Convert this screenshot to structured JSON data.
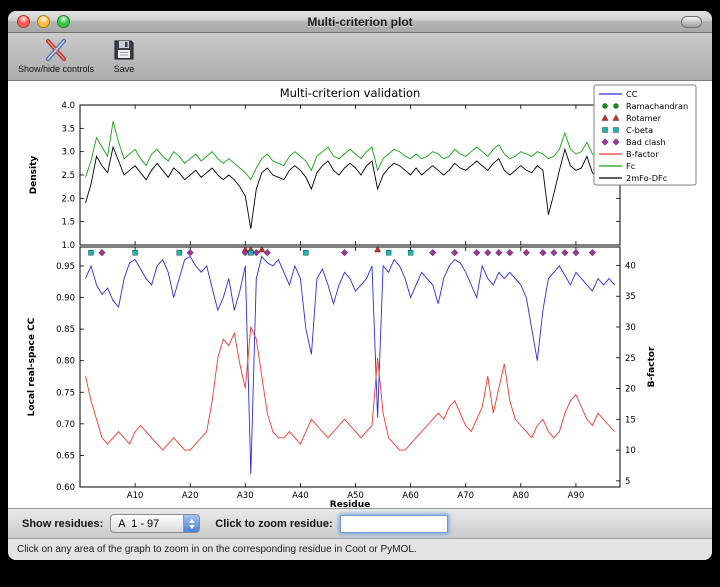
{
  "window": {
    "title": "Multi-criterion plot"
  },
  "toolbar": {
    "buttons": [
      {
        "label": "Show/hide controls"
      },
      {
        "label": "Save"
      }
    ]
  },
  "controls": {
    "show_residues_label": "Show residues:",
    "residue_range_value": "A  1 - 97",
    "zoom_label": "Click to zoom residue:",
    "zoom_input_value": ""
  },
  "status": {
    "text": "Click on any area of the graph to zoom in on the corresponding residue in Coot or PyMOL."
  },
  "chart_data": {
    "type": "line",
    "title": "Multi-criterion validation",
    "xlabel": "Residue",
    "x_range": [
      0,
      98
    ],
    "x_ticks": [
      [
        10,
        "A10"
      ],
      [
        20,
        "A20"
      ],
      [
        30,
        "A30"
      ],
      [
        40,
        "A40"
      ],
      [
        50,
        "A50"
      ],
      [
        60,
        "A60"
      ],
      [
        70,
        "A70"
      ],
      [
        80,
        "A80"
      ],
      [
        90,
        "A90"
      ]
    ],
    "top_panel": {
      "ylabel": "Density",
      "ylim": [
        1.0,
        4.0
      ],
      "yticks": [
        [
          1.0,
          "1.0"
        ],
        [
          1.5,
          "1.5"
        ],
        [
          2.0,
          "2.0"
        ],
        [
          2.5,
          "2.5"
        ],
        [
          3.0,
          "3.0"
        ],
        [
          3.5,
          "3.5"
        ],
        [
          4.0,
          "4.0"
        ]
      ],
      "series": [
        {
          "name": "Fc",
          "color": "#12a312",
          "values": [
            2.45,
            2.8,
            3.3,
            3.1,
            2.9,
            3.65,
            3.2,
            2.85,
            2.95,
            3.05,
            2.85,
            2.7,
            2.95,
            3.05,
            2.9,
            2.8,
            3.0,
            2.9,
            2.75,
            2.85,
            2.95,
            2.8,
            2.9,
            3.0,
            2.85,
            2.75,
            2.85,
            2.75,
            2.65,
            2.55,
            2.4,
            2.65,
            2.85,
            2.95,
            2.8,
            2.75,
            2.7,
            2.9,
            3.0,
            2.9,
            2.8,
            2.6,
            2.9,
            3.0,
            3.1,
            2.9,
            2.85,
            2.95,
            3.05,
            2.95,
            2.85,
            3.0,
            3.1,
            2.6,
            2.85,
            2.95,
            3.05,
            3.0,
            2.9,
            2.85,
            2.95,
            2.85,
            2.9,
            3.0,
            2.95,
            2.85,
            2.9,
            3.05,
            2.95,
            2.9,
            3.0,
            3.1,
            3.0,
            2.9,
            3.05,
            3.15,
            2.95,
            2.85,
            2.9,
            3.0,
            2.95,
            2.9,
            3.0,
            2.95,
            2.85,
            2.9,
            3.05,
            3.4,
            3.05,
            2.95,
            3.0,
            3.2,
            2.95,
            2.85,
            3.3,
            3.55,
            3.4
          ]
        },
        {
          "name": "2mFo-DFc",
          "color": "#000000",
          "values": [
            1.9,
            2.3,
            2.9,
            2.7,
            2.55,
            3.1,
            2.8,
            2.5,
            2.6,
            2.7,
            2.55,
            2.4,
            2.6,
            2.75,
            2.6,
            2.45,
            2.65,
            2.55,
            2.4,
            2.5,
            2.6,
            2.45,
            2.55,
            2.65,
            2.5,
            2.4,
            2.5,
            2.4,
            2.25,
            2.05,
            1.35,
            2.2,
            2.55,
            2.65,
            2.5,
            2.45,
            2.4,
            2.6,
            2.7,
            2.6,
            2.45,
            2.2,
            2.55,
            2.7,
            2.8,
            2.6,
            2.5,
            2.65,
            2.75,
            2.65,
            2.5,
            2.7,
            2.8,
            2.2,
            2.5,
            2.65,
            2.75,
            2.7,
            2.6,
            2.5,
            2.65,
            2.5,
            2.6,
            2.7,
            2.6,
            2.5,
            2.6,
            2.75,
            2.65,
            2.6,
            2.7,
            2.8,
            2.7,
            2.6,
            2.75,
            2.85,
            2.6,
            2.5,
            2.6,
            2.7,
            2.6,
            2.55,
            2.7,
            2.6,
            1.65,
            2.1,
            2.6,
            3.05,
            2.7,
            2.6,
            2.65,
            2.9,
            2.55,
            2.45,
            2.95,
            3.2,
            3.05
          ]
        }
      ]
    },
    "bottom_panel": {
      "ylabel_left": "Local real-space CC",
      "ylim_left": [
        0.6,
        0.98
      ],
      "yticks_left": [
        [
          0.6,
          "0.60"
        ],
        [
          0.65,
          "0.65"
        ],
        [
          0.7,
          "0.70"
        ],
        [
          0.75,
          "0.75"
        ],
        [
          0.8,
          "0.80"
        ],
        [
          0.85,
          "0.85"
        ],
        [
          0.9,
          "0.90"
        ],
        [
          0.95,
          "0.95"
        ]
      ],
      "ylabel_right": "B-factor",
      "ylim_right": [
        4,
        43
      ],
      "yticks_right": [
        [
          5,
          "5"
        ],
        [
          10,
          "10"
        ],
        [
          15,
          "15"
        ],
        [
          20,
          "20"
        ],
        [
          25,
          "25"
        ],
        [
          30,
          "30"
        ],
        [
          35,
          "35"
        ],
        [
          40,
          "40"
        ]
      ],
      "series": [
        {
          "name": "CC",
          "color": "#2d2ddd",
          "axis": "left",
          "values": [
            0.93,
            0.95,
            0.92,
            0.905,
            0.915,
            0.895,
            0.885,
            0.93,
            0.955,
            0.96,
            0.945,
            0.93,
            0.92,
            0.95,
            0.96,
            0.94,
            0.9,
            0.93,
            0.96,
            0.965,
            0.95,
            0.94,
            0.95,
            0.915,
            0.88,
            0.9,
            0.93,
            0.88,
            0.91,
            0.95,
            0.62,
            0.93,
            0.965,
            0.955,
            0.95,
            0.96,
            0.94,
            0.92,
            0.95,
            0.93,
            0.85,
            0.81,
            0.93,
            0.945,
            0.92,
            0.89,
            0.92,
            0.94,
            0.93,
            0.91,
            0.92,
            0.93,
            0.95,
            0.71,
            0.95,
            0.94,
            0.96,
            0.95,
            0.93,
            0.9,
            0.92,
            0.94,
            0.93,
            0.92,
            0.89,
            0.93,
            0.95,
            0.96,
            0.955,
            0.94,
            0.92,
            0.9,
            0.95,
            0.93,
            0.92,
            0.94,
            0.93,
            0.94,
            0.93,
            0.92,
            0.9,
            0.85,
            0.8,
            0.88,
            0.93,
            0.94,
            0.95,
            0.935,
            0.92,
            0.94,
            0.93,
            0.92,
            0.91,
            0.93,
            0.92,
            0.93,
            0.92
          ]
        },
        {
          "name": "B-factor",
          "color": "#f23a2e",
          "axis": "right",
          "values": [
            22,
            18,
            15,
            12,
            11,
            12,
            13,
            12,
            11,
            13,
            14,
            13,
            12,
            11,
            10,
            11,
            12,
            11,
            10,
            10,
            11,
            12,
            13,
            18,
            25,
            28,
            27,
            29,
            24,
            20,
            30,
            28,
            22,
            16,
            13,
            12,
            12,
            13,
            12,
            11,
            13,
            15,
            14,
            13,
            12,
            13,
            14,
            15,
            14,
            13,
            12,
            13,
            14,
            25,
            16,
            12,
            11,
            10,
            10,
            11,
            12,
            13,
            14,
            15,
            16,
            15,
            17,
            18,
            16,
            14,
            13,
            15,
            17,
            22,
            16,
            20,
            24,
            18,
            15,
            14,
            13,
            12,
            14,
            15,
            13,
            12,
            13,
            16,
            18,
            19,
            17,
            15,
            14,
            16,
            15,
            14,
            13
          ]
        }
      ],
      "markers": [
        {
          "name": "Ramachandran",
          "shape": "circle",
          "color": "#0f930f",
          "y": 0.971,
          "residues": []
        },
        {
          "name": "Rotamer",
          "shape": "triangle",
          "color": "#d42a20",
          "y": 0.976,
          "residues": [
            30,
            31,
            33,
            54
          ]
        },
        {
          "name": "C-beta",
          "shape": "square",
          "color": "#19b8b8",
          "y": 0.971,
          "residues": [
            2,
            10,
            18,
            31,
            41,
            56,
            60
          ]
        },
        {
          "name": "Bad clash",
          "shape": "diamond",
          "color": "#a033a0",
          "y": 0.971,
          "residues": [
            4,
            20,
            30,
            32,
            34,
            48,
            64,
            68,
            72,
            74,
            76,
            78,
            81,
            84,
            86,
            88,
            90,
            93
          ]
        }
      ]
    },
    "legend": [
      {
        "label": "CC",
        "type": "line",
        "color": "#2d2ddd"
      },
      {
        "label": "Ramachandran",
        "type": "circle",
        "color": "#0f930f"
      },
      {
        "label": "Rotamer",
        "type": "triangle",
        "color": "#d42a20"
      },
      {
        "label": "C-beta",
        "type": "square",
        "color": "#19b8b8"
      },
      {
        "label": "Bad clash",
        "type": "diamond",
        "color": "#a033a0"
      },
      {
        "label": "B-factor",
        "type": "line",
        "color": "#f23a2e"
      },
      {
        "label": "Fc",
        "type": "line",
        "color": "#12a312"
      },
      {
        "label": "2mFo-DFc",
        "type": "line",
        "color": "#000000"
      }
    ]
  }
}
